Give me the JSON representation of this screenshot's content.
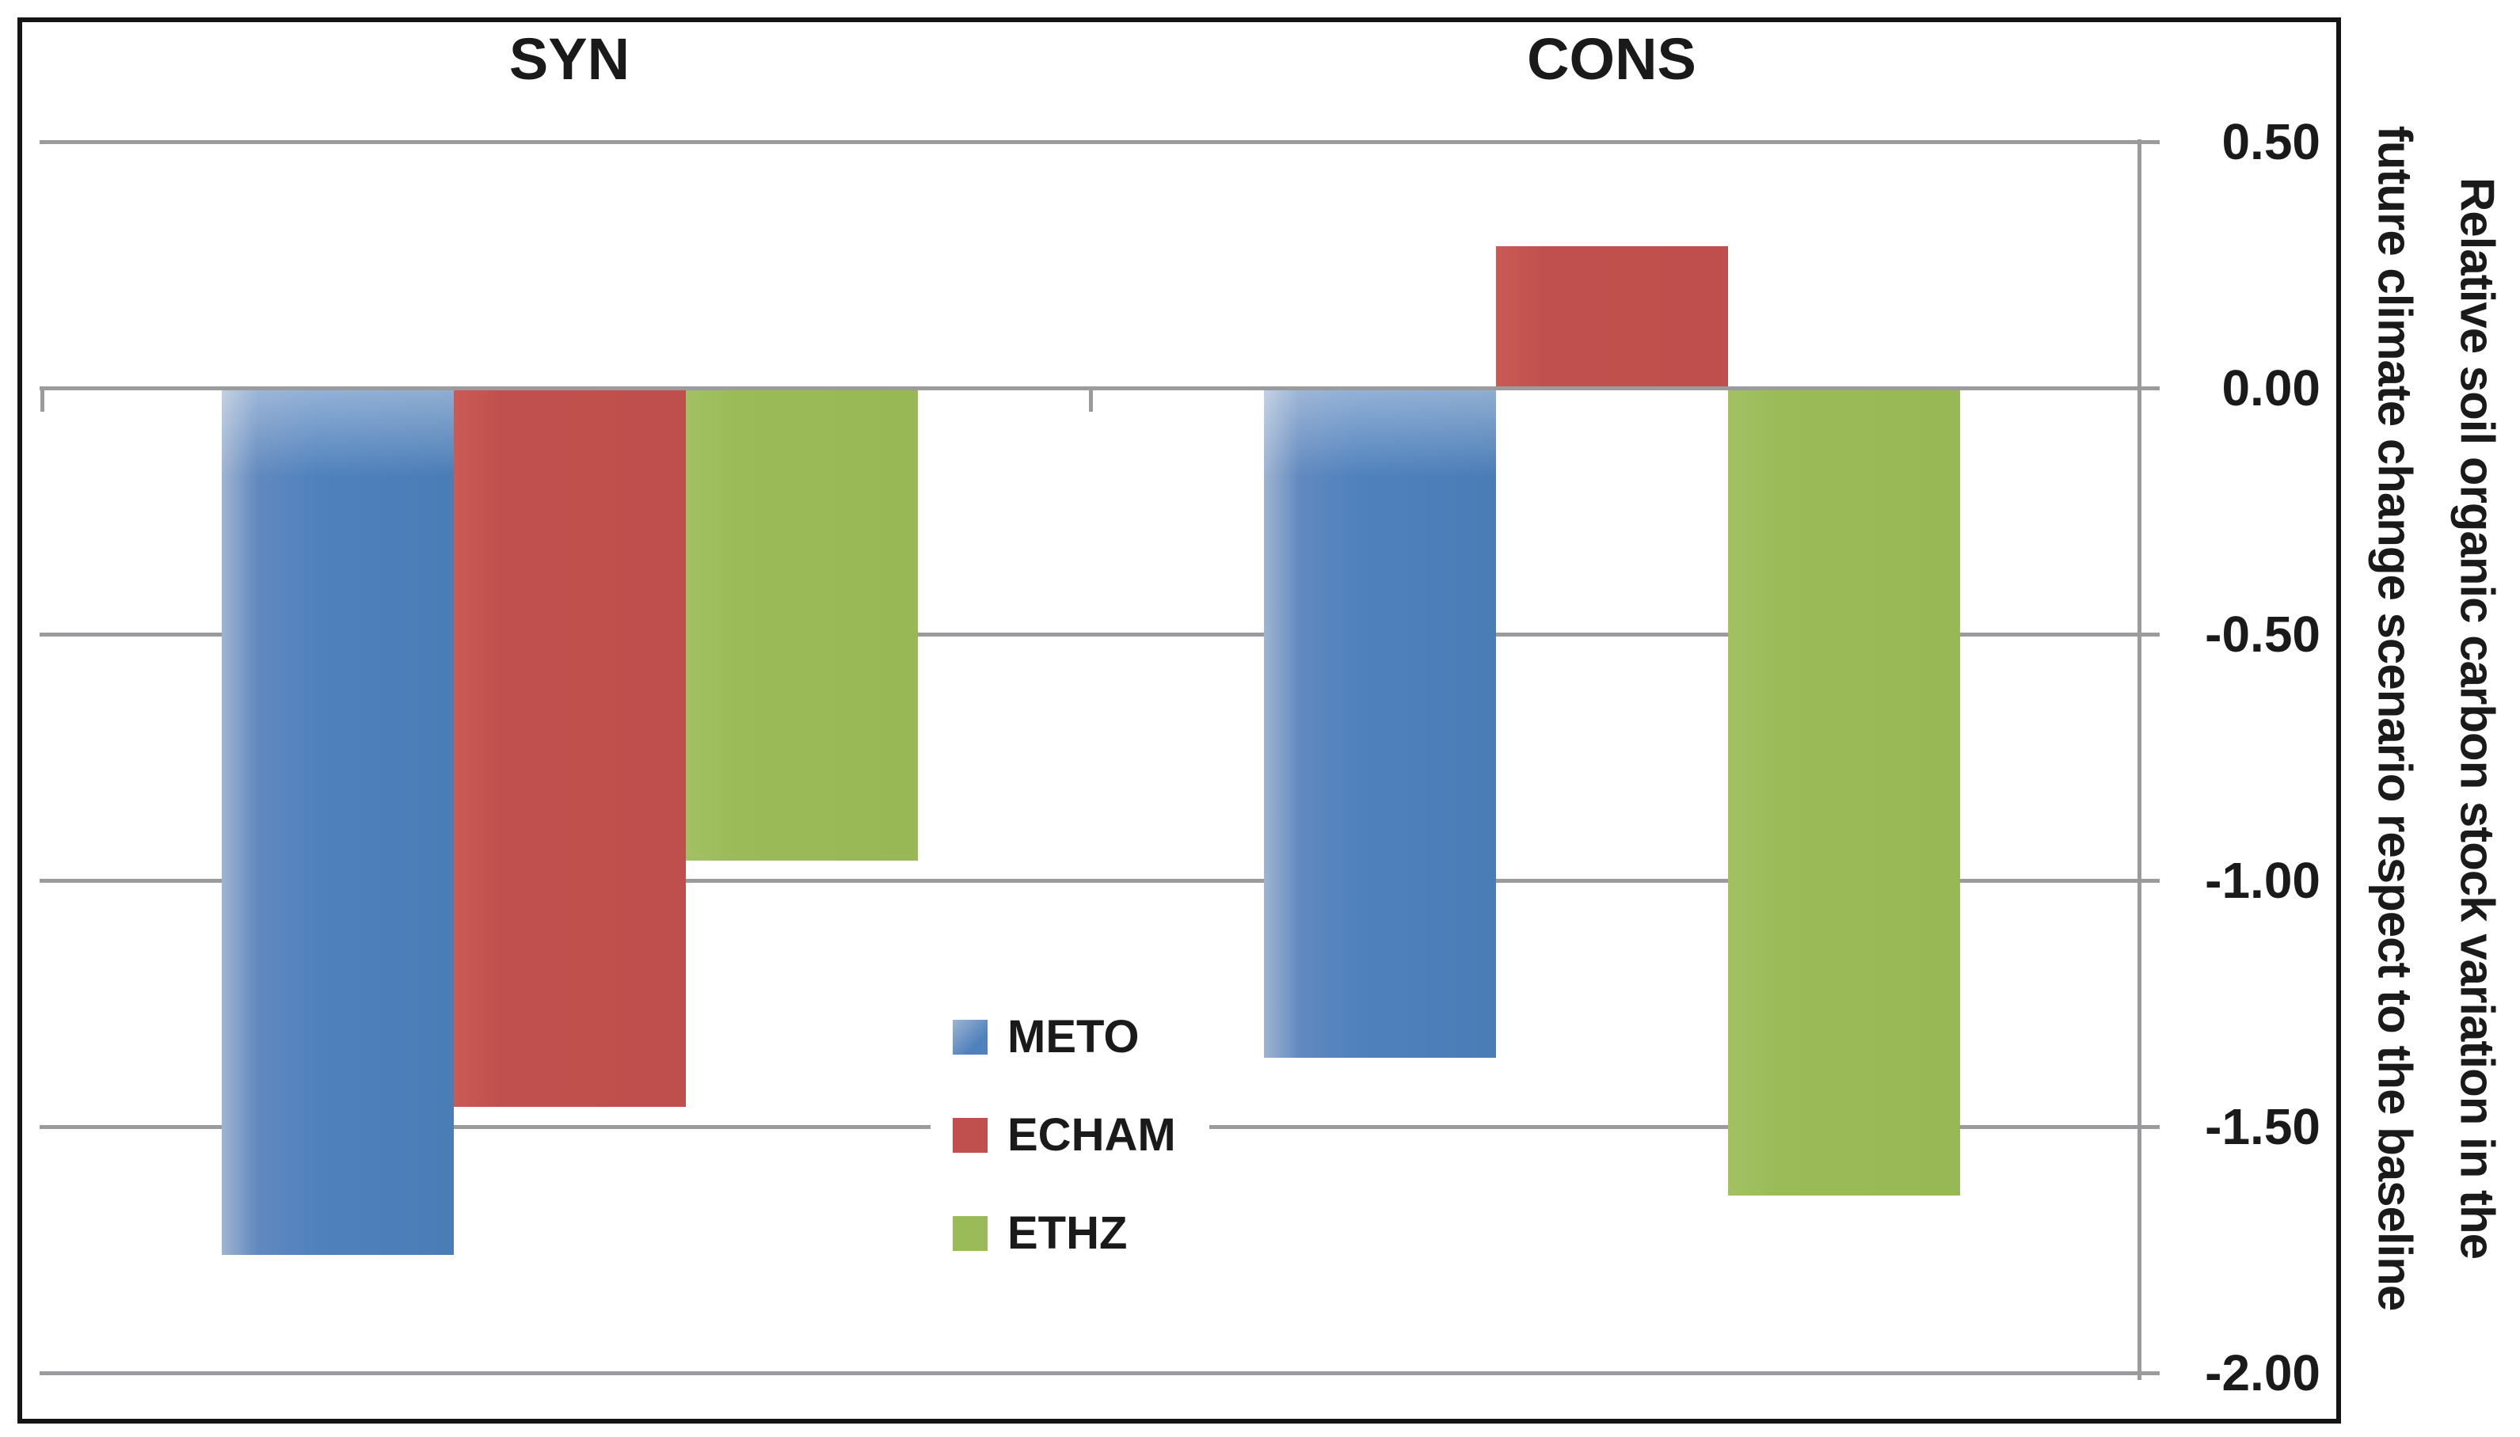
{
  "chart_data": {
    "type": "bar",
    "title": "",
    "categories": [
      "SYN",
      "CONS"
    ],
    "series": [
      {
        "name": "METO",
        "color": "#4F81BD",
        "values": [
          -1.76,
          -1.36
        ]
      },
      {
        "name": "ECHAM",
        "color": "#C0504D",
        "values": [
          -1.46,
          0.29
        ]
      },
      {
        "name": "ETHZ",
        "color": "#9BBB59",
        "values": [
          -0.96,
          -1.64
        ]
      }
    ],
    "xlabel": "",
    "ylabel": "Relative soil organic carbon stock variation in the future climate change scenario respect to the baseline",
    "ylabel_lines": [
      "Relative soil organic carbon stock variation in the",
      "future climate change scenario respect to the baseline"
    ],
    "yticks": [
      "0.50",
      "0.00",
      "-0.50",
      "-1.00",
      "-1.50",
      "-2.00"
    ],
    "ytick_values": [
      0.5,
      0.0,
      -0.5,
      -1.0,
      -1.5,
      -2.0
    ],
    "ylim": [
      -2.0,
      0.5
    ],
    "grid": true,
    "legend_position": "center-bottom",
    "legend": [
      "METO",
      "ECHAM",
      "ETHZ"
    ]
  },
  "colors": {
    "gridline": "#9B9B9D",
    "border": "#141414",
    "text": "#1A1A1A",
    "background": "#FFFFFF"
  }
}
